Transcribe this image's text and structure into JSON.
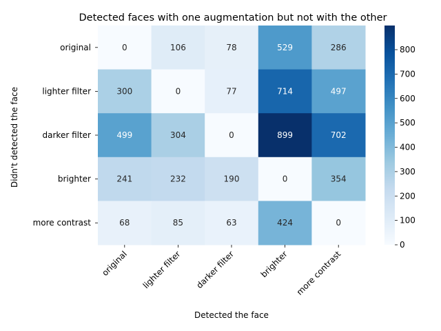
{
  "chart_data": {
    "type": "heatmap",
    "title": "Detected faces with one augmentation but not with the other",
    "xlabel": "Detected the face",
    "ylabel": "Didn't detected the face",
    "x_categories": [
      "original",
      "lighter filter",
      "darker filter",
      "brighter",
      "more contrast"
    ],
    "y_categories": [
      "original",
      "lighter filter",
      "darker filter",
      "brighter",
      "more contrast"
    ],
    "values": [
      [
        0,
        106,
        78,
        529,
        286
      ],
      [
        300,
        0,
        77,
        714,
        497
      ],
      [
        499,
        304,
        0,
        899,
        702
      ],
      [
        241,
        232,
        190,
        0,
        354
      ],
      [
        68,
        85,
        63,
        424,
        0
      ]
    ],
    "colormap": "Blues",
    "vmin": 0,
    "vmax": 899,
    "colorbar_ticks": [
      "0",
      "100",
      "200",
      "300",
      "400",
      "500",
      "600",
      "700",
      "800"
    ],
    "annotation_light": "#ffffff",
    "annotation_dark": "#262626"
  }
}
